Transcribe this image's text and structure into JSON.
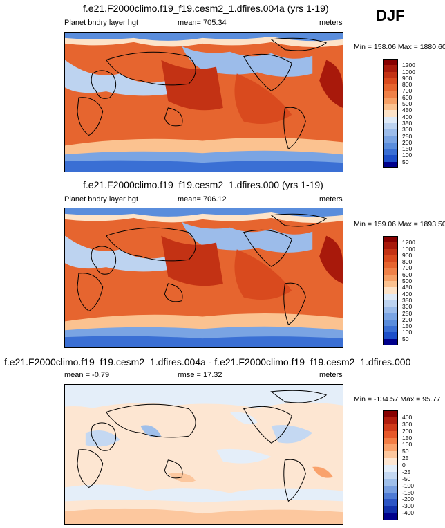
{
  "season": "DJF",
  "panels": [
    {
      "title": "f.e21.F2000climo.f19_f19.cesm2_1.dfires.004a (yrs 1-19)",
      "left": "Planet bndry layer hgt",
      "center": "mean= 705.34",
      "right": "meters",
      "minmax": "Min = 158.06 Max = 1880.60",
      "colorbar": {
        "labels": [
          "1200",
          "1000",
          "900",
          "800",
          "700",
          "600",
          "500",
          "450",
          "400",
          "350",
          "300",
          "250",
          "200",
          "150",
          "100",
          "50"
        ],
        "colors": [
          "#870000",
          "#a8190b",
          "#c33214",
          "#d94a1e",
          "#e6652f",
          "#ef8148",
          "#f6a066",
          "#fbc290",
          "#fde3c8",
          "#dfeaf7",
          "#bdd3f0",
          "#9cbcea",
          "#7aa4e3",
          "#5a8ddc",
          "#3a6fd4",
          "#1d4fc9",
          "#00008b"
        ]
      }
    },
    {
      "title": "f.e21.F2000climo.f19_f19.cesm2_1.dfires.000 (yrs 1-19)",
      "left": "Planet bndry layer hgt",
      "center": "mean= 706.12",
      "right": "meters",
      "minmax": "Min = 159.06 Max = 1893.50",
      "colorbar": {
        "labels": [
          "1200",
          "1000",
          "900",
          "800",
          "700",
          "600",
          "500",
          "450",
          "400",
          "350",
          "300",
          "250",
          "200",
          "150",
          "100",
          "50"
        ],
        "colors": [
          "#870000",
          "#a8190b",
          "#c33214",
          "#d94a1e",
          "#e6652f",
          "#ef8148",
          "#f6a066",
          "#fbc290",
          "#fde3c8",
          "#dfeaf7",
          "#bdd3f0",
          "#9cbcea",
          "#7aa4e3",
          "#5a8ddc",
          "#3a6fd4",
          "#1d4fc9",
          "#00008b"
        ]
      }
    },
    {
      "title": "f.e21.F2000climo.f19_f19.cesm2_1.dfires.004a - f.e21.F2000climo.f19_f19.cesm2_1.dfires.000",
      "left": "mean =  -0.79",
      "center": "rmse =  17.32",
      "right": "meters",
      "minmax": "Min = -134.57 Max =  95.77",
      "colorbar": {
        "labels": [
          "400",
          "300",
          "200",
          "150",
          "100",
          "50",
          "25",
          "0",
          "-25",
          "-50",
          "-100",
          "-150",
          "-200",
          "-300",
          "-400"
        ],
        "colors": [
          "#870000",
          "#b01c0d",
          "#cf3a1a",
          "#e6582a",
          "#f27d45",
          "#f9a26c",
          "#fcc79e",
          "#fde6d2",
          "#e4eef9",
          "#c4d8f2",
          "#9fbfea",
          "#789fe0",
          "#4f7bd4",
          "#2c55c4",
          "#1130ab",
          "#00008b"
        ]
      }
    }
  ]
}
